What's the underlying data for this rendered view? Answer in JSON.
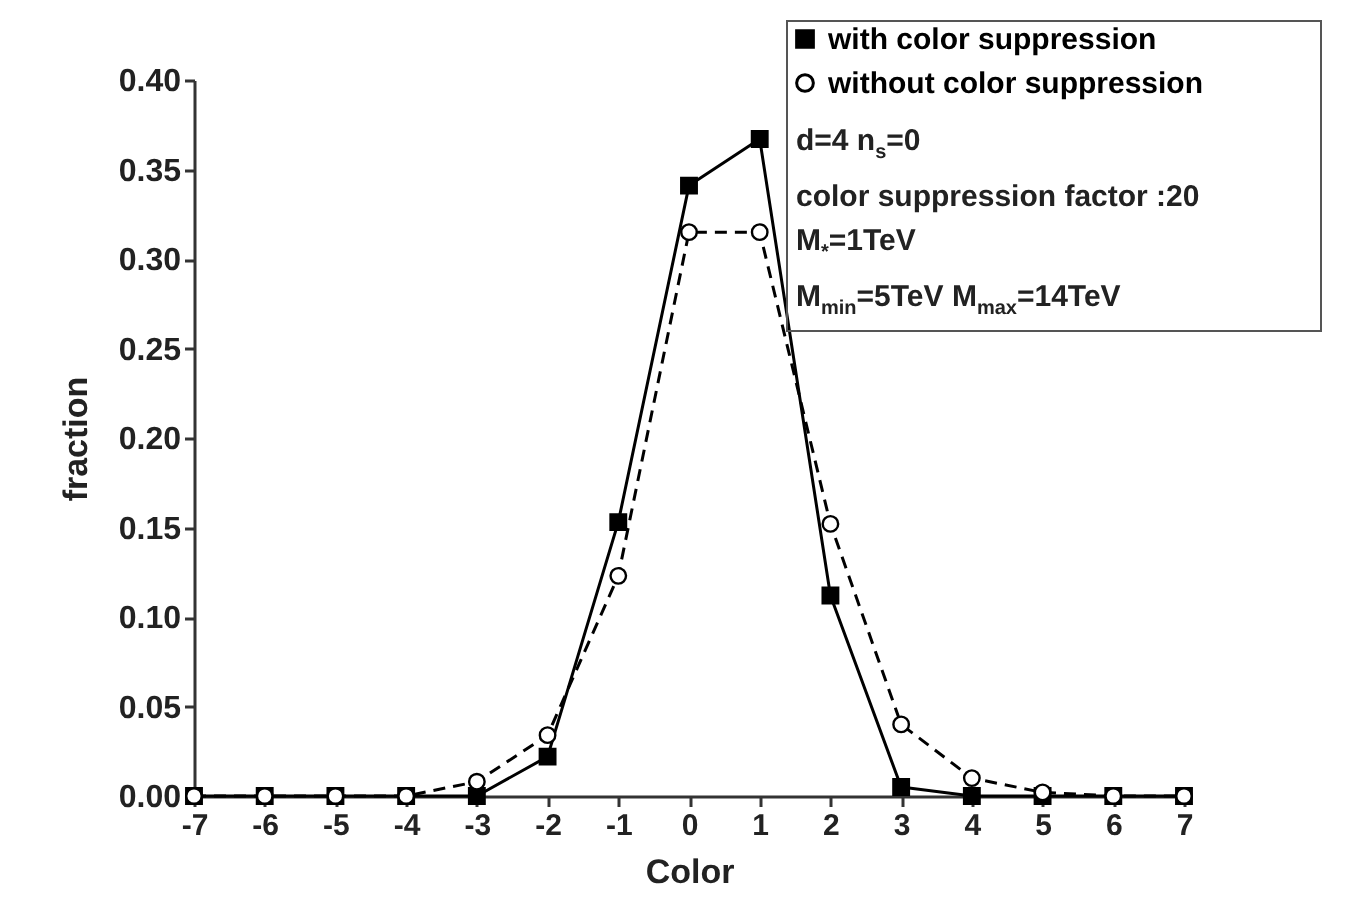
{
  "chart_data": {
    "type": "line",
    "xlabel": "Color",
    "ylabel": "fraction",
    "x": [
      -7,
      -6,
      -5,
      -4,
      -3,
      -2,
      -1,
      0,
      1,
      2,
      3,
      4,
      5,
      6,
      7
    ],
    "series": [
      {
        "name": "with color suppression",
        "color": "#000000",
        "marker": "square",
        "line_style": "solid",
        "values": [
          0,
          0,
          0,
          0,
          0,
          0.022,
          0.153,
          0.341,
          0.367,
          0.112,
          0.005,
          0,
          0,
          0,
          0
        ]
      },
      {
        "name": "without color suppression",
        "color": "#000000",
        "marker": "circle",
        "line_style": "dashed",
        "values": [
          0,
          0,
          0,
          0,
          0.008,
          0.034,
          0.123,
          0.315,
          0.315,
          0.152,
          0.04,
          0.01,
          0.002,
          0,
          0
        ]
      }
    ],
    "xlim": [
      -7,
      7
    ],
    "xticks": [
      -7,
      -6,
      -5,
      -4,
      -3,
      -2,
      -1,
      0,
      1,
      2,
      3,
      4,
      5,
      6,
      7
    ],
    "ylim": [
      0,
      0.4
    ],
    "yticks": [
      {
        "value": 0,
        "label": "0.00"
      },
      {
        "value": 0.05,
        "label": "0.05"
      },
      {
        "value": 0.1,
        "label": "0.10"
      },
      {
        "value": 0.15,
        "label": "0.15"
      },
      {
        "value": 0.2,
        "label": "0.20"
      },
      {
        "value": 0.25,
        "label": "0.25"
      },
      {
        "value": 0.3,
        "label": "0.30"
      },
      {
        "value": 0.35,
        "label": "0.35"
      },
      {
        "value": 0.4,
        "label": "0.40"
      }
    ],
    "legend": "top right",
    "grid": false,
    "annotations": [
      "d=4  n$_{s}$=0",
      "color suppression factor :20",
      "M$_{*}$=1TeV",
      "M$_{min}$=5TeV  M$_{max}$=14TeV"
    ]
  }
}
